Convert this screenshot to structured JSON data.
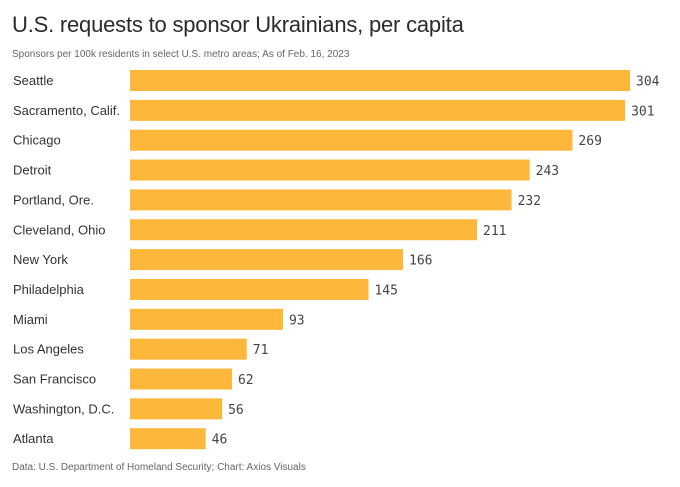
{
  "chart_data": {
    "type": "bar",
    "orientation": "horizontal",
    "title": "U.S. requests to sponsor Ukrainians, per capita",
    "subtitle": "Sponsors per 100k residents in select U.S. metro areas; As of Feb. 16, 2023",
    "source": "Data: U.S. Department of Homeland Security; Chart: Axios Visuals",
    "xlabel": "",
    "ylabel": "",
    "xlim": [
      0,
      304
    ],
    "grid": false,
    "bar_color": "#FDB83C",
    "categories": [
      "Seattle",
      "Sacramento, Calif.",
      "Chicago",
      "Detroit",
      "Portland, Ore.",
      "Cleveland, Ohio",
      "New York",
      "Philadelphia",
      "Miami",
      "Los Angeles",
      "San Francisco",
      "Washington, D.C.",
      "Atlanta"
    ],
    "values": [
      304,
      301,
      269,
      243,
      232,
      211,
      166,
      145,
      93,
      71,
      62,
      56,
      46
    ]
  }
}
